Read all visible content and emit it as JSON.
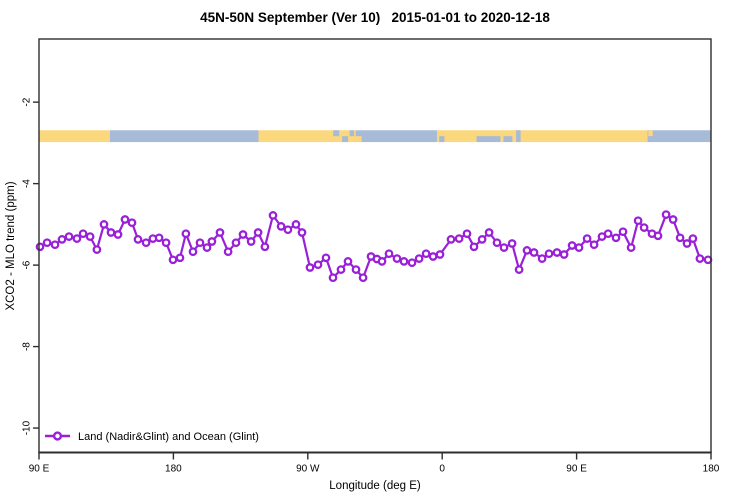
{
  "chart_data": {
    "type": "line",
    "title": "45N-50N September (Ver 10)   2015-01-01 to 2020-12-18",
    "xlabel": "Longitude (deg E)",
    "ylabel": "XCO2 - MLO trend (ppm)",
    "xlim": [
      90,
      540
    ],
    "ylim": [
      -10.6,
      -0.45
    ],
    "grid": false,
    "xticks": {
      "values": [
        90,
        180,
        270,
        360,
        450,
        540
      ],
      "labels": [
        "90 E",
        "180",
        "90 W",
        "0",
        "90 E",
        "180"
      ]
    },
    "yticks": {
      "values": [
        -2,
        -4,
        -6,
        -8,
        -10
      ],
      "labels": [
        "-2",
        "-4",
        "-6",
        "-8",
        "-10"
      ]
    },
    "colors": {
      "series": "#9A20D8",
      "land": "#FBD77E",
      "ocean": "#A7BAD7",
      "axis": "#2E2E2E",
      "background": "#FFFFFF"
    },
    "legend": {
      "position": "bottom-left",
      "entries": [
        {
          "label": "Land (Nadir&Glint) and Ocean (Glint)",
          "color": "#9A20D8",
          "marker": "open-circle"
        }
      ]
    },
    "surface_band": {
      "description": "land/ocean strip along longitude",
      "ppm_top": -2.69,
      "ppm_bottom": -2.98,
      "segments": [
        {
          "from": 90,
          "to": 137.5,
          "surface": "land"
        },
        {
          "from": 137.5,
          "to": 237,
          "surface": "ocean"
        },
        {
          "from": 237,
          "to": 302,
          "surface": "land"
        },
        {
          "from": 302,
          "to": 356.5,
          "surface": "ocean"
        },
        {
          "from": 356.5,
          "to": 497.5,
          "surface": "land"
        },
        {
          "from": 497.5,
          "to": 540,
          "surface": "ocean"
        }
      ],
      "patches": [
        {
          "from": 287,
          "to": 291,
          "half": "top",
          "surface": "ocean"
        },
        {
          "from": 293,
          "to": 297,
          "half": "bottom",
          "surface": "ocean"
        },
        {
          "from": 298,
          "to": 301,
          "half": "top",
          "surface": "ocean"
        },
        {
          "from": 302,
          "to": 306,
          "half": "bottom",
          "surface": "land"
        },
        {
          "from": 358,
          "to": 361.5,
          "half": "bottom",
          "surface": "ocean"
        },
        {
          "from": 383,
          "to": 399,
          "half": "bottom",
          "surface": "ocean"
        },
        {
          "from": 401,
          "to": 407,
          "half": "bottom",
          "surface": "ocean"
        },
        {
          "from": 409.5,
          "to": 412.5,
          "half": "full",
          "surface": "ocean"
        },
        {
          "from": 495,
          "to": 497.5,
          "half": "bottom",
          "surface": "land"
        },
        {
          "from": 498,
          "to": 501,
          "half": "top",
          "surface": "land"
        }
      ]
    },
    "series": [
      {
        "name": "Land (Nadir&Glint) and Ocean (Glint)",
        "color": "#9A20D8",
        "marker": "open-circle",
        "x": [
          90.7,
          95.4,
          100.7,
          105.4,
          110.1,
          115.4,
          119.5,
          124.2,
          128.8,
          133.5,
          138.2,
          142.9,
          147.6,
          152.3,
          156.3,
          161.7,
          166.3,
          170.4,
          175.1,
          179.7,
          184.4,
          188.4,
          193.1,
          197.8,
          202.5,
          205.8,
          211.2,
          216.6,
          221.9,
          226.6,
          232.0,
          236.7,
          241.3,
          246.7,
          252.1,
          256.7,
          262.1,
          266.1,
          271.5,
          276.8,
          282.2,
          286.9,
          292.2,
          296.9,
          302.3,
          307.0,
          312.3,
          316.3,
          319.7,
          324.4,
          329.7,
          334.4,
          339.8,
          344.5,
          349.2,
          353.9,
          358.5,
          365.9,
          371.3,
          376.6,
          381.3,
          386.7,
          391.4,
          396.7,
          401.4,
          406.8,
          411.5,
          416.8,
          421.5,
          426.9,
          431.5,
          436.9,
          441.6,
          447.0,
          451.6,
          457.0,
          461.7,
          467.0,
          471.1,
          476.4,
          481.1,
          486.5,
          491.2,
          495.2,
          500.5,
          504.5,
          509.9,
          514.6,
          519.3,
          523.9,
          527.9,
          532.6,
          538.0
        ],
        "y": [
          -5.55,
          -5.45,
          -5.5,
          -5.37,
          -5.3,
          -5.35,
          -5.23,
          -5.3,
          -5.62,
          -5.0,
          -5.2,
          -5.25,
          -4.88,
          -4.96,
          -5.37,
          -5.45,
          -5.35,
          -5.33,
          -5.45,
          -5.87,
          -5.82,
          -5.23,
          -5.67,
          -5.45,
          -5.57,
          -5.42,
          -5.2,
          -5.67,
          -5.45,
          -5.25,
          -5.42,
          -5.2,
          -5.55,
          -4.78,
          -5.05,
          -5.13,
          -5.0,
          -5.2,
          -6.06,
          -5.99,
          -5.82,
          -6.31,
          -6.11,
          -5.91,
          -6.11,
          -6.31,
          -5.79,
          -5.85,
          -5.91,
          -5.72,
          -5.84,
          -5.91,
          -5.94,
          -5.84,
          -5.72,
          -5.79,
          -5.74,
          -5.37,
          -5.35,
          -5.23,
          -5.55,
          -5.37,
          -5.2,
          -5.45,
          -5.57,
          -5.47,
          -6.11,
          -5.64,
          -5.69,
          -5.84,
          -5.72,
          -5.69,
          -5.74,
          -5.52,
          -5.57,
          -5.35,
          -5.5,
          -5.3,
          -5.23,
          -5.33,
          -5.18,
          -5.57,
          -4.91,
          -5.08,
          -5.23,
          -5.28,
          -4.76,
          -4.88,
          -5.33,
          -5.47,
          -5.35,
          -5.84,
          -5.87
        ]
      }
    ]
  }
}
